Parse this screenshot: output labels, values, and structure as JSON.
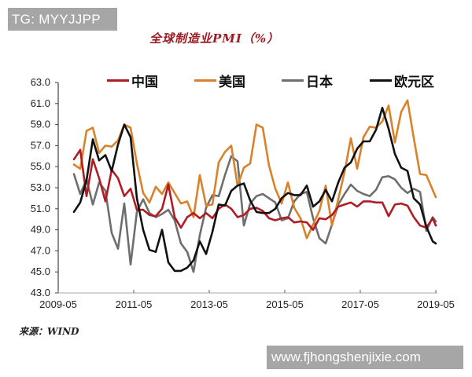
{
  "watermark_top": "TG: MYYJJPP",
  "watermark_bottom": "www.fjhongshenjixie.com",
  "title": "全球制造业PMI（%）",
  "source": "来源：WIND",
  "legend": [
    {
      "label": "中国",
      "color": "#b01c24"
    },
    {
      "label": "美国",
      "color": "#d9822b"
    },
    {
      "label": "日本",
      "color": "#6e6e6e"
    },
    {
      "label": "欧元区",
      "color": "#111111"
    }
  ],
  "chart_data": {
    "type": "line",
    "title": "全球制造业PMI（%）",
    "xlabel": "",
    "ylabel": "",
    "ylim": [
      43.0,
      63.0
    ],
    "yticks": [
      "63.0",
      "61.0",
      "59.0",
      "57.0",
      "55.0",
      "53.0",
      "51.0",
      "49.0",
      "47.0",
      "45.0",
      "43.0"
    ],
    "xticks": [
      "2009-05",
      "2011-05",
      "2013-05",
      "2015-05",
      "2017-05",
      "2019-05"
    ],
    "grid": false,
    "legend_position": "top",
    "x": [
      "2009-10",
      "2009-12",
      "2010-02",
      "2010-04",
      "2010-06",
      "2010-08",
      "2010-10",
      "2010-12",
      "2011-02",
      "2011-04",
      "2011-06",
      "2011-08",
      "2011-10",
      "2011-12",
      "2012-02",
      "2012-04",
      "2012-06",
      "2012-08",
      "2012-10",
      "2012-12",
      "2013-02",
      "2013-04",
      "2013-06",
      "2013-08",
      "2013-10",
      "2013-12",
      "2014-02",
      "2014-04",
      "2014-06",
      "2014-08",
      "2014-10",
      "2014-12",
      "2015-02",
      "2015-04",
      "2015-06",
      "2015-08",
      "2015-10",
      "2015-12",
      "2016-02",
      "2016-04",
      "2016-06",
      "2016-08",
      "2016-10",
      "2016-12",
      "2017-02",
      "2017-04",
      "2017-06",
      "2017-08",
      "2017-10",
      "2017-12",
      "2018-02",
      "2018-04",
      "2018-06",
      "2018-08",
      "2018-10",
      "2018-12",
      "2019-02",
      "2019-04",
      "2019-05"
    ],
    "series": [
      {
        "name": "中国",
        "color": "#b01c24",
        "values": [
          55.7,
          56.6,
          52.2,
          55.7,
          53.9,
          51.7,
          54.7,
          53.9,
          52.2,
          52.9,
          50.9,
          50.9,
          50.4,
          50.3,
          51.0,
          53.3,
          50.2,
          49.2,
          50.2,
          50.6,
          50.1,
          50.6,
          50.1,
          51.0,
          51.4,
          51.0,
          50.2,
          50.4,
          51.0,
          51.1,
          50.8,
          50.1,
          49.9,
          50.1,
          50.2,
          49.7,
          49.8,
          49.7,
          49.0,
          50.1,
          50.0,
          50.4,
          51.2,
          51.4,
          51.6,
          51.2,
          51.7,
          51.7,
          51.6,
          51.6,
          50.3,
          51.4,
          51.5,
          51.3,
          50.2,
          49.4,
          49.2,
          50.1,
          49.4
        ]
      },
      {
        "name": "美国",
        "color": "#d9822b",
        "values": [
          55.2,
          54.8,
          58.4,
          58.7,
          56.3,
          57.0,
          56.9,
          57.5,
          59.0,
          58.7,
          55.3,
          52.5,
          51.6,
          53.1,
          52.4,
          53.5,
          52.5,
          51.5,
          51.7,
          50.2,
          54.2,
          51.3,
          51.4,
          55.4,
          56.4,
          57.0,
          53.2,
          54.9,
          55.3,
          59.0,
          58.7,
          55.1,
          52.9,
          51.5,
          53.5,
          51.1,
          50.1,
          48.2,
          49.5,
          50.8,
          53.2,
          49.4,
          51.9,
          54.5,
          57.7,
          54.8,
          57.8,
          58.8,
          58.7,
          59.3,
          60.8,
          57.3,
          60.2,
          61.3,
          57.7,
          54.3,
          54.2,
          52.8,
          52.1
        ]
      },
      {
        "name": "日本",
        "color": "#6e6e6e",
        "values": [
          54.3,
          52.4,
          53.8,
          51.4,
          53.5,
          52.7,
          48.7,
          47.2,
          51.5,
          45.7,
          50.7,
          51.9,
          50.6,
          50.2,
          50.5,
          50.9,
          49.9,
          47.7,
          46.9,
          45.0,
          48.5,
          51.1,
          52.3,
          52.2,
          54.2,
          56.0,
          55.5,
          49.4,
          51.5,
          52.2,
          52.4,
          52.0,
          51.6,
          49.9,
          50.1,
          51.7,
          52.4,
          52.6,
          50.1,
          48.2,
          47.7,
          49.5,
          51.4,
          52.4,
          53.3,
          52.7,
          52.4,
          52.2,
          52.8,
          54.0,
          54.1,
          53.8,
          53.0,
          52.5,
          52.9,
          52.6,
          48.9,
          50.2,
          49.8
        ]
      },
      {
        "name": "欧元区",
        "color": "#111111",
        "values": [
          50.7,
          51.6,
          53.7,
          57.6,
          55.6,
          56.1,
          54.6,
          57.1,
          59.0,
          57.8,
          52.0,
          49.0,
          47.1,
          46.9,
          49.0,
          45.9,
          45.1,
          45.1,
          45.4,
          46.1,
          47.9,
          46.7,
          48.8,
          51.4,
          51.3,
          52.7,
          53.2,
          53.4,
          51.8,
          50.7,
          50.6,
          50.6,
          51.0,
          52.0,
          52.5,
          52.3,
          52.3,
          53.2,
          51.2,
          51.7,
          52.8,
          51.7,
          53.5,
          54.9,
          55.4,
          56.7,
          57.4,
          57.4,
          58.5,
          60.6,
          58.6,
          56.2,
          54.9,
          54.6,
          52.0,
          51.4,
          49.3,
          47.9,
          47.7
        ]
      }
    ]
  }
}
